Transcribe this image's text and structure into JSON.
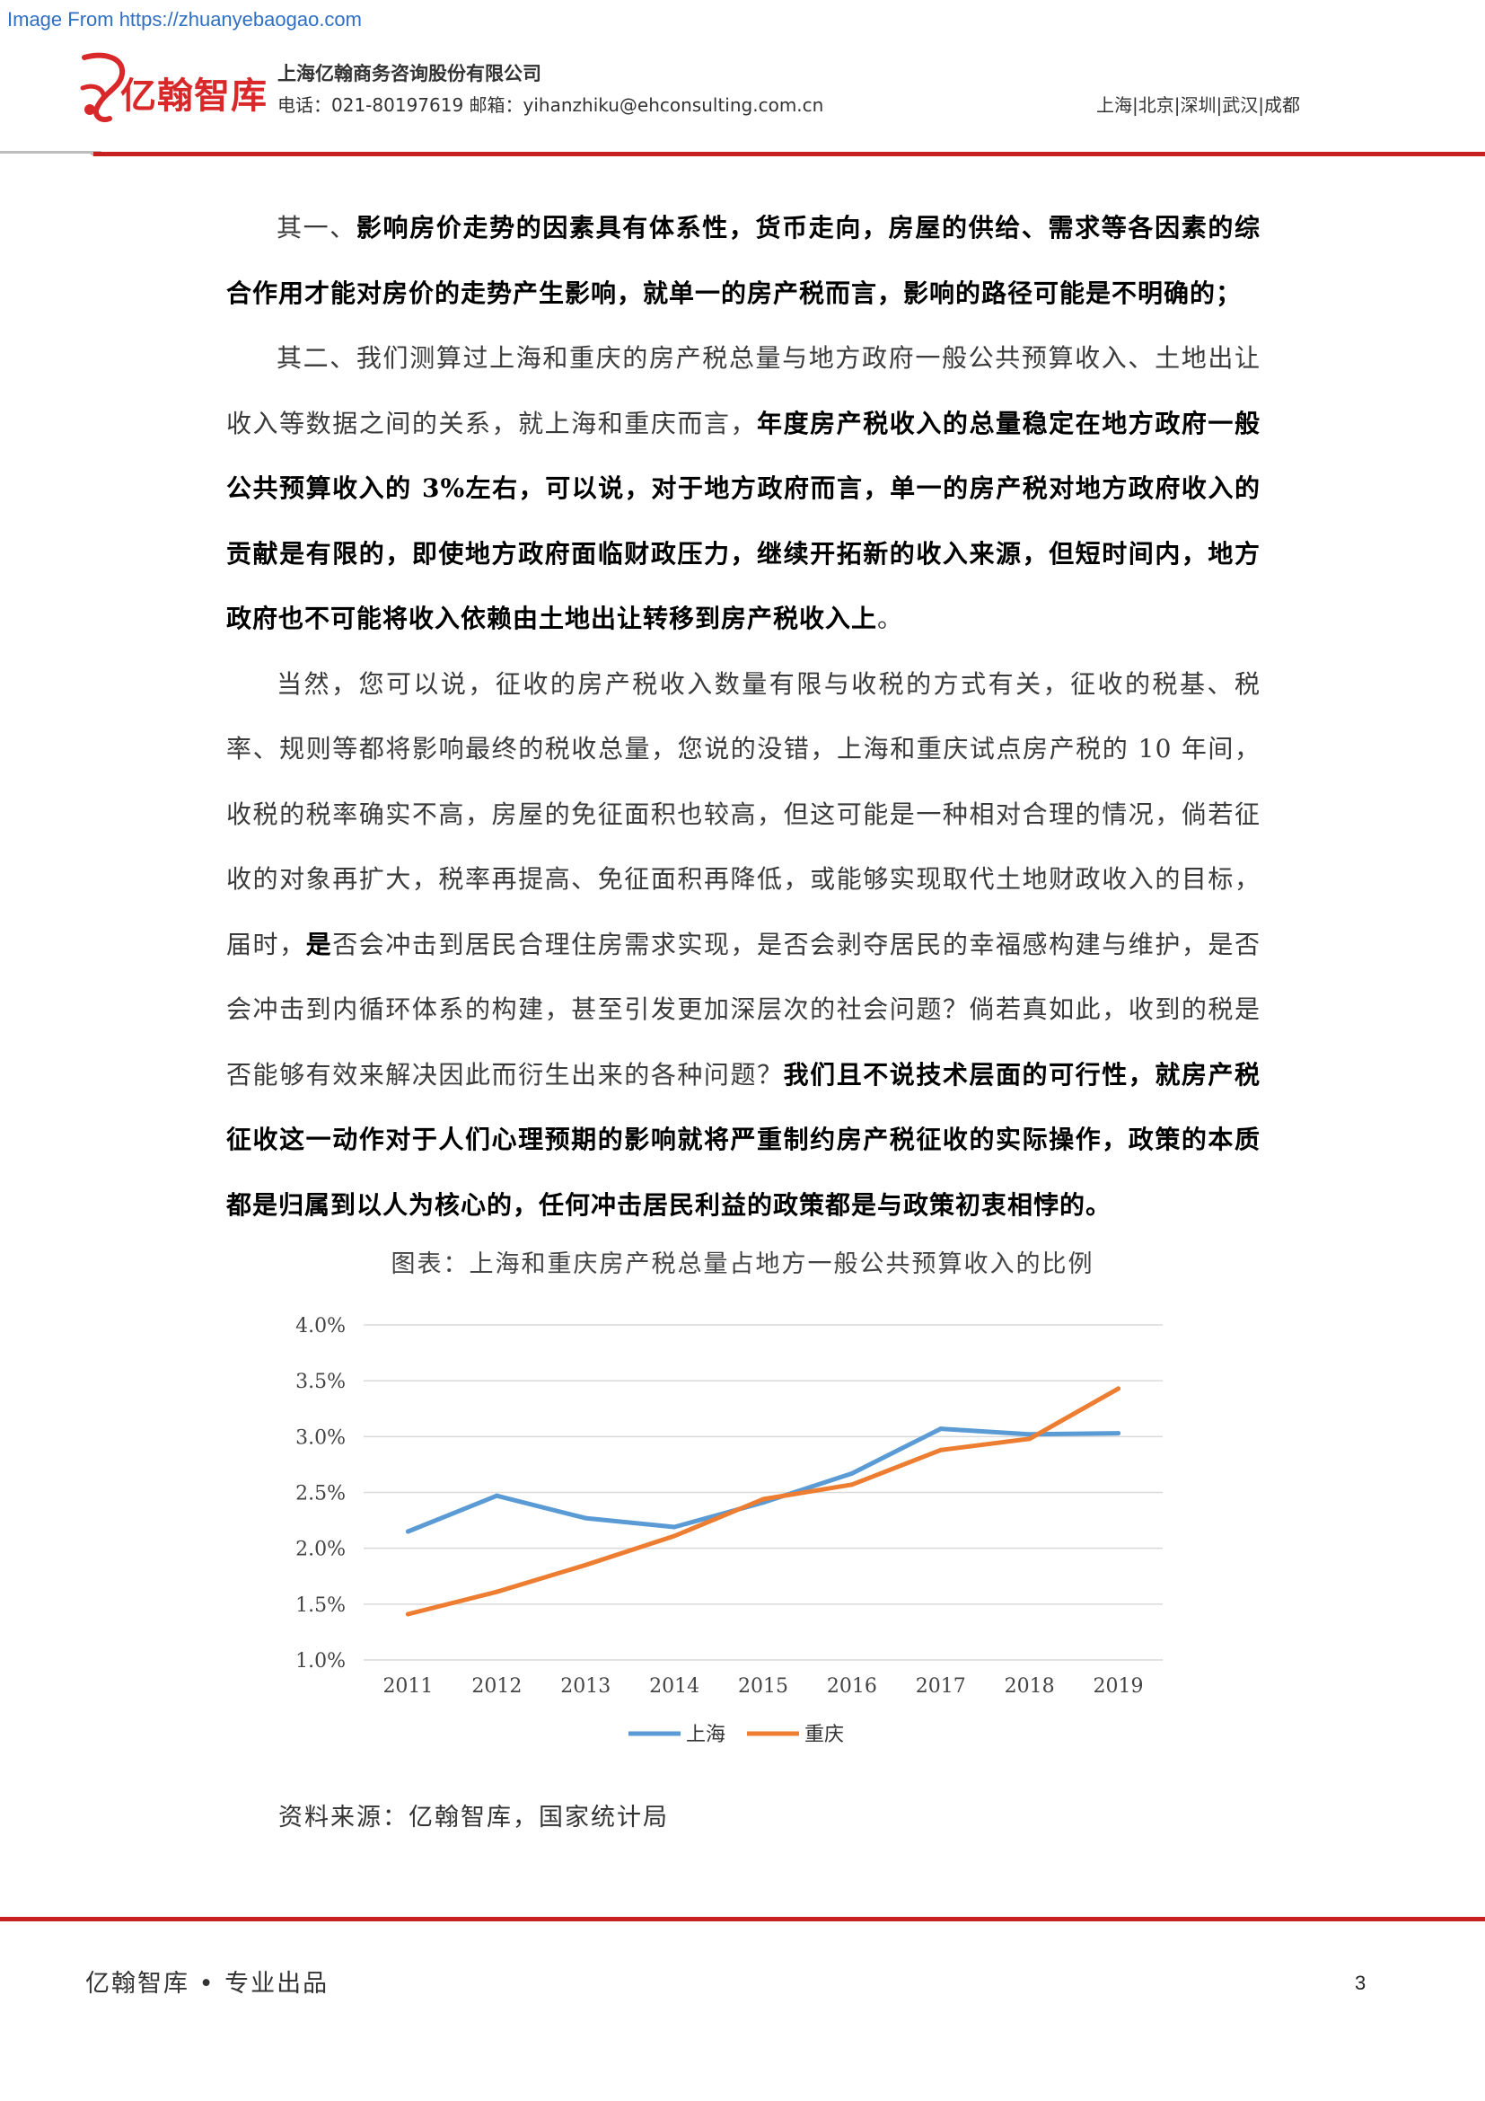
{
  "watermark": "Image From https://zhuanyebaogao.com",
  "header": {
    "logo_text": "亿翰智库",
    "company": "上海亿翰商务咨询股份有限公司",
    "contact": "电话：021-80197619 邮箱：yihanzhiku@ehconsulting.com.cn",
    "cities": "上海|北京|深圳|武汉|成都",
    "accent_color": "#d9282a"
  },
  "paragraphs": [
    [
      {
        "t": "其一、",
        "b": false
      },
      {
        "t": "影响房价走势的因素具有体系性，货币走向，房屋的供给、需求等各因素的综合作用才能对房价的走势产生影响，就单一的房产税而言，影响的路径可能是不明确的；",
        "b": true
      }
    ],
    [
      {
        "t": "其二、我们测算过上海和重庆的房产税总量与地方政府一般公共预算收入、土地出让收入等数据之间的关系，就上海和重庆而言，",
        "b": false
      },
      {
        "t": "年度房产税收入的总量稳定在地方政府一般公共预算收入的 3%左右，可以说，对于地方政府而言，单一的房产税对地方政府收入的贡献是有限的，即使地方政府面临财政压力，继续开拓新的收入来源，但短时间内，地方政府也不可能将收入依赖由土地出让转移到房产税收入上",
        "b": true
      },
      {
        "t": "。",
        "b": false
      }
    ],
    [
      {
        "t": "当然，您可以说，征收的房产税收入数量有限与收税的方式有关，征收的税基、税率、规则等都将影响最终的税收总量，您说的没错，上海和重庆试点房产税的 10 年间，收税的税率确实不高，房屋的免征面积也较高，但这可能是一种相对合理的情况，倘若征收的对象再扩大，税率再提高、免征面积再降低，或能够实现取代土地财政收入的目标，届时，",
        "b": false
      },
      {
        "t": "是",
        "b": true
      },
      {
        "t": "否会冲击到居民合理住房需求实现，是否会剥夺居民的幸福感构建与维护，是否会冲击到内循环体系的构建，甚至引发更加深层次的社会问题？倘若真如此，收到的税是否能够有效来解决因此而衍生出来的各种问题？",
        "b": false
      },
      {
        "t": "我们且不说技术层面的可行性，就房产税征收这一动作对于人们心理预期的影响就将严重制约房产税征收的实际操作，政策的本质都是归属到以人为核心的，任何冲击居民利益的政策都是与政策初衷相悖的。",
        "b": true
      }
    ]
  ],
  "chart_title": "图表：上海和重庆房产税总量占地方一般公共预算收入的比例",
  "chart_data": {
    "type": "line",
    "title": "图表：上海和重庆房产税总量占地方一般公共预算收入的比例",
    "x": [
      "2011",
      "2012",
      "2013",
      "2014",
      "2015",
      "2016",
      "2017",
      "2018",
      "2019"
    ],
    "ylim": [
      0.01,
      0.04
    ],
    "yticks": [
      "1.0%",
      "1.5%",
      "2.0%",
      "2.5%",
      "3.0%",
      "3.5%",
      "4.0%"
    ],
    "ytick_values": [
      0.01,
      0.015,
      0.02,
      0.025,
      0.03,
      0.035,
      0.04
    ],
    "grid": true,
    "legend_position": "bottom",
    "series": [
      {
        "name": "上海",
        "color": "#5b9bd5",
        "values": [
          0.0215,
          0.0247,
          0.0227,
          0.0219,
          0.0241,
          0.0267,
          0.0307,
          0.0302,
          0.0303
        ]
      },
      {
        "name": "重庆",
        "color": "#ed7d31",
        "values": [
          0.0141,
          0.0161,
          0.0185,
          0.0211,
          0.0244,
          0.0257,
          0.0288,
          0.0298,
          0.0343
        ]
      }
    ]
  },
  "source": "资料来源：亿翰智库，国家统计局",
  "footer": {
    "left": "亿翰智库 • 专业出品",
    "page": "3",
    "rule_color": "#c8201f"
  }
}
